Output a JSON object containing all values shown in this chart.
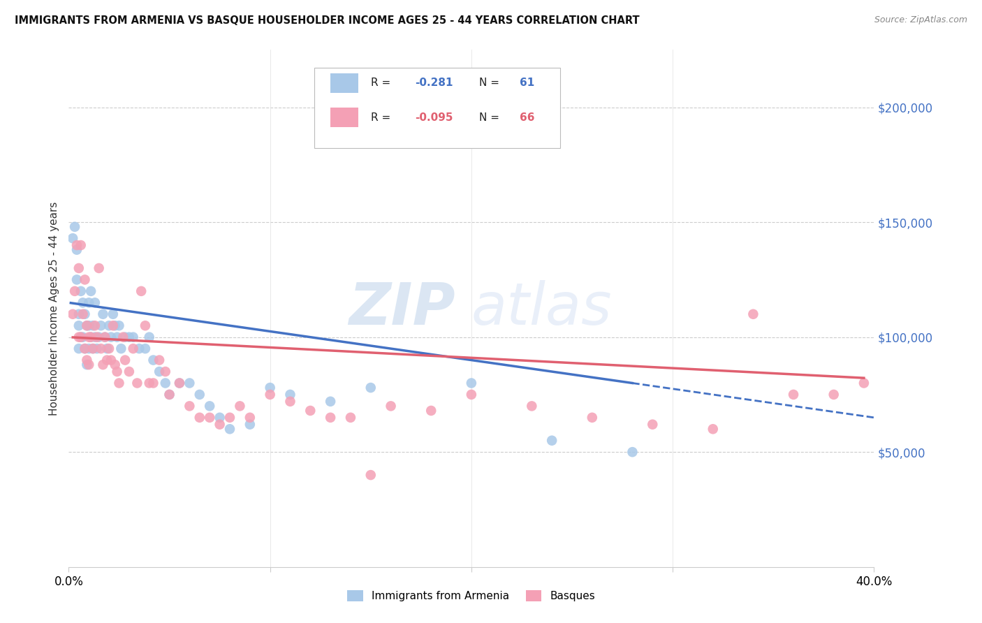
{
  "title": "IMMIGRANTS FROM ARMENIA VS BASQUE HOUSEHOLDER INCOME AGES 25 - 44 YEARS CORRELATION CHART",
  "source": "Source: ZipAtlas.com",
  "ylabel": "Householder Income Ages 25 - 44 years",
  "x_min": 0.0,
  "x_max": 0.4,
  "y_min": 0,
  "y_max": 225000,
  "y_ticks": [
    50000,
    100000,
    150000,
    200000
  ],
  "y_tick_labels": [
    "$50,000",
    "$100,000",
    "$150,000",
    "$200,000"
  ],
  "x_tick_labels": [
    "0.0%",
    "",
    "",
    "",
    "40.0%"
  ],
  "x_ticks": [
    0.0,
    0.1,
    0.2,
    0.3,
    0.4
  ],
  "armenia_color": "#a8c8e8",
  "basque_color": "#f4a0b5",
  "armenia_line_color": "#4472c4",
  "basque_line_color": "#e06070",
  "armenia_R": -0.281,
  "armenia_N": 61,
  "basque_R": -0.095,
  "basque_N": 66,
  "legend_label1": "Immigrants from Armenia",
  "legend_label2": "Basques",
  "watermark_zip": "ZIP",
  "watermark_atlas": "atlas",
  "background_color": "#ffffff",
  "armenia_x": [
    0.002,
    0.003,
    0.004,
    0.004,
    0.005,
    0.005,
    0.005,
    0.006,
    0.006,
    0.007,
    0.007,
    0.008,
    0.008,
    0.009,
    0.009,
    0.01,
    0.01,
    0.01,
    0.011,
    0.011,
    0.012,
    0.012,
    0.013,
    0.013,
    0.014,
    0.015,
    0.016,
    0.017,
    0.018,
    0.019,
    0.02,
    0.021,
    0.022,
    0.023,
    0.024,
    0.025,
    0.026,
    0.028,
    0.03,
    0.032,
    0.035,
    0.038,
    0.04,
    0.042,
    0.045,
    0.048,
    0.05,
    0.055,
    0.06,
    0.065,
    0.07,
    0.075,
    0.08,
    0.09,
    0.1,
    0.11,
    0.13,
    0.15,
    0.2,
    0.24,
    0.28
  ],
  "armenia_y": [
    143000,
    148000,
    138000,
    125000,
    110000,
    105000,
    95000,
    120000,
    100000,
    115000,
    100000,
    110000,
    95000,
    105000,
    88000,
    115000,
    105000,
    95000,
    120000,
    100000,
    105000,
    95000,
    115000,
    100000,
    95000,
    100000,
    105000,
    110000,
    100000,
    95000,
    105000,
    100000,
    110000,
    105000,
    100000,
    105000,
    95000,
    100000,
    100000,
    100000,
    95000,
    95000,
    100000,
    90000,
    85000,
    80000,
    75000,
    80000,
    80000,
    75000,
    70000,
    65000,
    60000,
    62000,
    78000,
    75000,
    72000,
    78000,
    80000,
    55000,
    50000
  ],
  "basque_x": [
    0.002,
    0.003,
    0.004,
    0.005,
    0.005,
    0.006,
    0.006,
    0.007,
    0.008,
    0.008,
    0.009,
    0.009,
    0.01,
    0.01,
    0.011,
    0.012,
    0.013,
    0.014,
    0.015,
    0.016,
    0.017,
    0.018,
    0.019,
    0.02,
    0.021,
    0.022,
    0.023,
    0.024,
    0.025,
    0.027,
    0.028,
    0.03,
    0.032,
    0.034,
    0.036,
    0.038,
    0.04,
    0.042,
    0.045,
    0.048,
    0.05,
    0.055,
    0.06,
    0.065,
    0.07,
    0.075,
    0.08,
    0.085,
    0.09,
    0.1,
    0.11,
    0.12,
    0.13,
    0.14,
    0.15,
    0.16,
    0.18,
    0.2,
    0.23,
    0.26,
    0.29,
    0.32,
    0.34,
    0.36,
    0.38,
    0.395
  ],
  "basque_y": [
    110000,
    120000,
    140000,
    130000,
    100000,
    140000,
    100000,
    110000,
    125000,
    95000,
    105000,
    90000,
    100000,
    88000,
    100000,
    95000,
    105000,
    100000,
    130000,
    95000,
    88000,
    100000,
    90000,
    95000,
    90000,
    105000,
    88000,
    85000,
    80000,
    100000,
    90000,
    85000,
    95000,
    80000,
    120000,
    105000,
    80000,
    80000,
    90000,
    85000,
    75000,
    80000,
    70000,
    65000,
    65000,
    62000,
    65000,
    70000,
    65000,
    75000,
    72000,
    68000,
    65000,
    65000,
    40000,
    70000,
    68000,
    75000,
    70000,
    65000,
    62000,
    60000,
    110000,
    75000,
    75000,
    80000
  ]
}
